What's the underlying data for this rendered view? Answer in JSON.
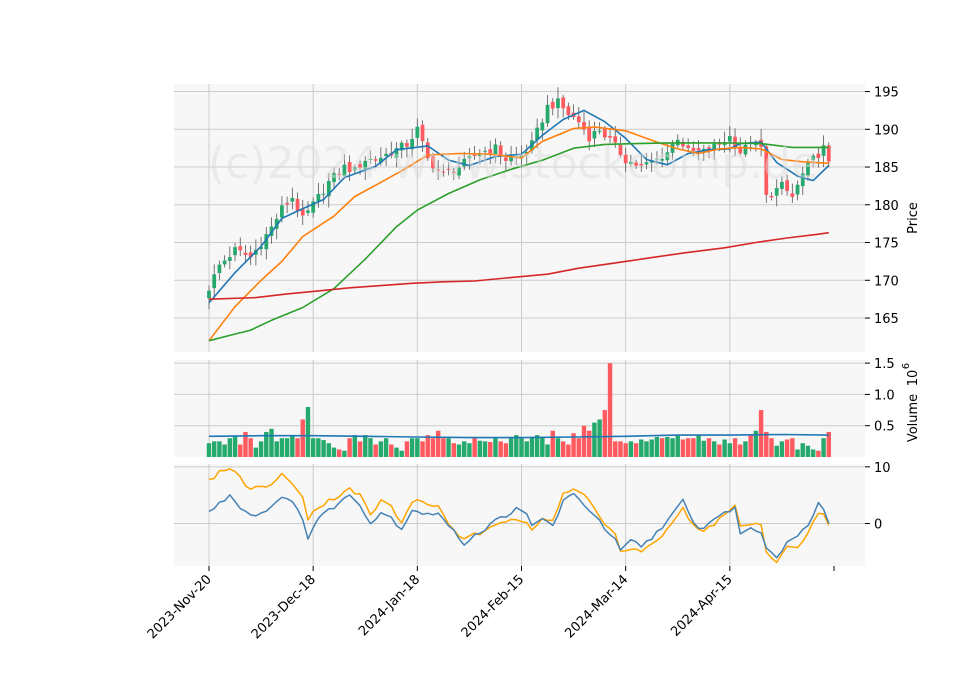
{
  "watermark": "(c)2024 www.stockcomp.de",
  "colors": {
    "up": "#26a96c",
    "down": "#ff5a5f",
    "ma1": "#1f77b4",
    "ma2": "#ff7f0e",
    "ma3": "#2ca02c",
    "ma4": "#d62728",
    "volume_ma": "#1f77b4",
    "osc_fast": "#4682b4",
    "osc_slow": "#ffa500",
    "panel_bg": "#f7f7f7",
    "grid": "#cccccc"
  },
  "chart_data": {
    "type": "candlestick",
    "x_ticks": [
      {
        "label": "2023-Nov-20",
        "day": 0
      },
      {
        "label": "2023-Dec-18",
        "day": 20
      },
      {
        "label": "2024-Jan-18",
        "day": 40
      },
      {
        "label": "2024-Feb-15",
        "day": 60
      },
      {
        "label": "2024-Mar-14",
        "day": 80
      },
      {
        "label": "2024-Apr-15",
        "day": 100
      }
    ],
    "n_days": 120,
    "price": {
      "ylabel": "Price",
      "ylim": [
        160.5,
        196
      ],
      "yticks": [
        165,
        170,
        175,
        180,
        185,
        190,
        195
      ],
      "close_key": [
        [
          0,
          169
        ],
        [
          2,
          172
        ],
        [
          5,
          174
        ],
        [
          8,
          173
        ],
        [
          10,
          175
        ],
        [
          12,
          177
        ],
        [
          14,
          179.5
        ],
        [
          16,
          181
        ],
        [
          18,
          178
        ],
        [
          20,
          180
        ],
        [
          23,
          183
        ],
        [
          26,
          185
        ],
        [
          28,
          184.5
        ],
        [
          30,
          186
        ],
        [
          32,
          186
        ],
        [
          35,
          187
        ],
        [
          38,
          188
        ],
        [
          40,
          190
        ],
        [
          42,
          186
        ],
        [
          45,
          184
        ],
        [
          48,
          185
        ],
        [
          50,
          186
        ],
        [
          52,
          187
        ],
        [
          55,
          187.5
        ],
        [
          57,
          186
        ],
        [
          60,
          186.5
        ],
        [
          62,
          188
        ],
        [
          65,
          193
        ],
        [
          67,
          193.5
        ],
        [
          69,
          192
        ],
        [
          71,
          191
        ],
        [
          73,
          189
        ],
        [
          75,
          190
        ],
        [
          77,
          188.5
        ],
        [
          80,
          186
        ],
        [
          83,
          185
        ],
        [
          86,
          186
        ],
        [
          88,
          187
        ],
        [
          90,
          189
        ],
        [
          92,
          187
        ],
        [
          95,
          187
        ],
        [
          98,
          188
        ],
        [
          100,
          189
        ],
        [
          102,
          187
        ],
        [
          104,
          188
        ],
        [
          106,
          187.5
        ],
        [
          107,
          181
        ],
        [
          110,
          182.5
        ],
        [
          112,
          181
        ],
        [
          114,
          184
        ],
        [
          116,
          186
        ],
        [
          118,
          187.5
        ],
        [
          120,
          183
        ]
      ],
      "ma_series": [
        {
          "key": "ma1",
          "points": [
            [
              0,
              167
            ],
            [
              5,
              171
            ],
            [
              10,
              174.5
            ],
            [
              14,
              178.2
            ],
            [
              18,
              179.5
            ],
            [
              22,
              180.7
            ],
            [
              26,
              183.6
            ],
            [
              32,
              185.1
            ],
            [
              36,
              187.3
            ],
            [
              42,
              187.8
            ],
            [
              46,
              185.9
            ],
            [
              50,
              185.2
            ],
            [
              55,
              186.4
            ],
            [
              60,
              186.7
            ],
            [
              64,
              189.2
            ],
            [
              68,
              191.3
            ],
            [
              72,
              192.5
            ],
            [
              76,
              191
            ],
            [
              80,
              188.8
            ],
            [
              84,
              186
            ],
            [
              88,
              185.3
            ],
            [
              92,
              186.8
            ],
            [
              96,
              187.3
            ],
            [
              100,
              187.4
            ],
            [
              102,
              188.1
            ],
            [
              106,
              188.3
            ],
            [
              109,
              185.6
            ],
            [
              113,
              183.8
            ],
            [
              116,
              183.2
            ],
            [
              119,
              185.2
            ]
          ]
        },
        {
          "key": "ma2",
          "points": [
            [
              0,
              162
            ],
            [
              5,
              166.5
            ],
            [
              10,
              170
            ],
            [
              14,
              172.5
            ],
            [
              18,
              175.8
            ],
            [
              24,
              178.5
            ],
            [
              28,
              181.1
            ],
            [
              32,
              182.6
            ],
            [
              37,
              184.5
            ],
            [
              42,
              186.6
            ],
            [
              48,
              186.8
            ],
            [
              54,
              186.7
            ],
            [
              60,
              186.2
            ],
            [
              64,
              188.4
            ],
            [
              70,
              190.1
            ],
            [
              74,
              190.3
            ],
            [
              80,
              189.8
            ],
            [
              86,
              188.3
            ],
            [
              90,
              187.4
            ],
            [
              94,
              186.8
            ],
            [
              98,
              187.4
            ],
            [
              102,
              187.6
            ],
            [
              106,
              187.4
            ],
            [
              110,
              186
            ],
            [
              114,
              185.7
            ],
            [
              119,
              185.5
            ]
          ]
        },
        {
          "key": "ma3",
          "points": [
            [
              0,
              162
            ],
            [
              4,
              162.7
            ],
            [
              8,
              163.4
            ],
            [
              12,
              164.7
            ],
            [
              18,
              166.4
            ],
            [
              24,
              168.9
            ],
            [
              30,
              172.8
            ],
            [
              36,
              177.1
            ],
            [
              40,
              179.3
            ],
            [
              46,
              181.5
            ],
            [
              52,
              183.3
            ],
            [
              58,
              184.7
            ],
            [
              64,
              185.9
            ],
            [
              70,
              187.5
            ],
            [
              76,
              188
            ],
            [
              82,
              188.1
            ],
            [
              88,
              188.2
            ],
            [
              94,
              188.2
            ],
            [
              100,
              188.2
            ],
            [
              106,
              188.1
            ],
            [
              112,
              187.6
            ],
            [
              119,
              187.6
            ]
          ]
        },
        {
          "key": "ma4",
          "points": [
            [
              0,
              167.5
            ],
            [
              9,
              167.7
            ],
            [
              15,
              168.2
            ],
            [
              21,
              168.6
            ],
            [
              27,
              169
            ],
            [
              33,
              169.3
            ],
            [
              39,
              169.6
            ],
            [
              45,
              169.8
            ],
            [
              51,
              169.9
            ],
            [
              57,
              170.3
            ],
            [
              65,
              170.8
            ],
            [
              71,
              171.6
            ],
            [
              79,
              172.4
            ],
            [
              85,
              173
            ],
            [
              91,
              173.6
            ],
            [
              99,
              174.3
            ],
            [
              105,
              175
            ],
            [
              111,
              175.6
            ],
            [
              117,
              176.1
            ],
            [
              119,
              176.3
            ]
          ]
        }
      ]
    },
    "volume": {
      "ylabel": "Volume",
      "exponent": "6",
      "ylim": [
        0,
        1.55
      ],
      "yticks": [
        0.5,
        1.0,
        1.5
      ],
      "ytick_labels": [
        "0.5",
        "1.0",
        "1.5"
      ],
      "values": [
        0.22,
        0.25,
        0.25,
        0.2,
        0.3,
        0.33,
        0.2,
        0.4,
        0.3,
        0.15,
        0.25,
        0.4,
        0.45,
        0.25,
        0.3,
        0.3,
        0.35,
        0.3,
        0.6,
        0.8,
        0.3,
        0.3,
        0.27,
        0.22,
        0.15,
        0.12,
        0.1,
        0.3,
        0.35,
        0.25,
        0.35,
        0.3,
        0.2,
        0.25,
        0.3,
        0.2,
        0.15,
        0.1,
        0.25,
        0.3,
        0.3,
        0.25,
        0.35,
        0.3,
        0.42,
        0.3,
        0.3,
        0.22,
        0.2,
        0.25,
        0.22,
        0.3,
        0.26,
        0.25,
        0.24,
        0.3,
        0.25,
        0.22,
        0.3,
        0.35,
        0.3,
        0.25,
        0.32,
        0.35,
        0.32,
        0.2,
        0.42,
        0.3,
        0.25,
        0.2,
        0.38,
        0.3,
        0.5,
        0.42,
        0.55,
        0.6,
        0.75,
        1.5,
        0.25,
        0.25,
        0.22,
        0.25,
        0.22,
        0.28,
        0.25,
        0.28,
        0.32,
        0.3,
        0.32,
        0.3,
        0.35,
        0.28,
        0.3,
        0.3,
        0.35,
        0.26,
        0.3,
        0.25,
        0.2,
        0.28,
        0.22,
        0.3,
        0.2,
        0.25,
        0.35,
        0.42,
        0.75,
        0.4,
        0.3,
        0.18,
        0.25,
        0.28,
        0.3,
        0.12,
        0.22,
        0.18,
        0.12,
        0.1,
        0.3,
        0.4
      ],
      "ma_points": [
        [
          0,
          0.33
        ],
        [
          10,
          0.34
        ],
        [
          20,
          0.34
        ],
        [
          30,
          0.33
        ],
        [
          40,
          0.32
        ],
        [
          50,
          0.31
        ],
        [
          60,
          0.31
        ],
        [
          70,
          0.32
        ],
        [
          80,
          0.33
        ],
        [
          90,
          0.35
        ],
        [
          100,
          0.35
        ],
        [
          110,
          0.36
        ],
        [
          119,
          0.35
        ]
      ]
    },
    "oscillator": {
      "ylim": [
        -7.5,
        10.5
      ],
      "yticks": [
        0,
        10
      ],
      "ytick_labels": [
        "0",
        "10"
      ],
      "fast_key": [
        [
          0,
          2
        ],
        [
          2,
          3.5
        ],
        [
          4,
          5
        ],
        [
          6,
          3
        ],
        [
          8,
          1.5
        ],
        [
          10,
          1.8
        ],
        [
          12,
          3
        ],
        [
          14,
          5
        ],
        [
          16,
          3.5
        ],
        [
          18,
          1
        ],
        [
          19,
          -2.5
        ],
        [
          21,
          1
        ],
        [
          24,
          3
        ],
        [
          27,
          5
        ],
        [
          29,
          3.5
        ],
        [
          31,
          0
        ],
        [
          33,
          2
        ],
        [
          35,
          1
        ],
        [
          37,
          -1
        ],
        [
          39,
          2.5
        ],
        [
          42,
          1.5
        ],
        [
          44,
          2
        ],
        [
          46,
          -0.5
        ],
        [
          49,
          -3.5
        ],
        [
          51,
          -2
        ],
        [
          53,
          -1
        ],
        [
          55,
          0.5
        ],
        [
          57,
          1.5
        ],
        [
          59,
          2.5
        ],
        [
          61,
          1.5
        ],
        [
          62,
          -0.5
        ],
        [
          64,
          1
        ],
        [
          66,
          -0.5
        ],
        [
          68,
          4
        ],
        [
          70,
          5
        ],
        [
          72,
          3.5
        ],
        [
          74,
          1.5
        ],
        [
          76,
          -1
        ],
        [
          78,
          -3
        ],
        [
          79,
          -5
        ],
        [
          81,
          -3
        ],
        [
          83,
          -4
        ],
        [
          85,
          -2.5
        ],
        [
          87,
          -0.5
        ],
        [
          89,
          1.5
        ],
        [
          91,
          4
        ],
        [
          93,
          0
        ],
        [
          95,
          -1
        ],
        [
          97,
          1
        ],
        [
          99,
          2
        ],
        [
          101,
          2.5
        ],
        [
          102,
          -1.5
        ],
        [
          104,
          -1
        ],
        [
          106,
          -1.5
        ],
        [
          107,
          -4
        ],
        [
          109,
          -6
        ],
        [
          111,
          -3
        ],
        [
          113,
          -2.5
        ],
        [
          115,
          0
        ],
        [
          117,
          3.5
        ],
        [
          118,
          2.5
        ],
        [
          120,
          -2
        ]
      ],
      "slow_key": [
        [
          0,
          7.5
        ],
        [
          2,
          9
        ],
        [
          4,
          10
        ],
        [
          6,
          8
        ],
        [
          8,
          6
        ],
        [
          10,
          6.5
        ],
        [
          12,
          7
        ],
        [
          14,
          8.5
        ],
        [
          16,
          7
        ],
        [
          18,
          5
        ],
        [
          19,
          1
        ],
        [
          21,
          3
        ],
        [
          24,
          4.5
        ],
        [
          27,
          6
        ],
        [
          29,
          5
        ],
        [
          31,
          1.5
        ],
        [
          33,
          4
        ],
        [
          35,
          3
        ],
        [
          37,
          0
        ],
        [
          39,
          4
        ],
        [
          42,
          3.5
        ],
        [
          44,
          3
        ],
        [
          46,
          0
        ],
        [
          49,
          -3
        ],
        [
          51,
          -2
        ],
        [
          53,
          -1.5
        ],
        [
          55,
          -0.5
        ],
        [
          57,
          0.5
        ],
        [
          59,
          1
        ],
        [
          61,
          0.5
        ],
        [
          62,
          -1
        ],
        [
          64,
          1
        ],
        [
          66,
          0.5
        ],
        [
          68,
          5
        ],
        [
          70,
          6
        ],
        [
          72,
          5
        ],
        [
          74,
          3
        ],
        [
          76,
          0
        ],
        [
          78,
          -2
        ],
        [
          79,
          -5
        ],
        [
          81,
          -4.5
        ],
        [
          83,
          -5
        ],
        [
          85,
          -4
        ],
        [
          87,
          -2
        ],
        [
          89,
          0
        ],
        [
          91,
          3
        ],
        [
          93,
          -0.5
        ],
        [
          95,
          -1.5
        ],
        [
          97,
          0
        ],
        [
          99,
          1.5
        ],
        [
          101,
          3
        ],
        [
          102,
          -0.5
        ],
        [
          104,
          0
        ],
        [
          106,
          -0.5
        ],
        [
          107,
          -5
        ],
        [
          109,
          -6.5
        ],
        [
          111,
          -4
        ],
        [
          113,
          -4.5
        ],
        [
          115,
          -2
        ],
        [
          117,
          2
        ],
        [
          118,
          1.5
        ],
        [
          120,
          -2.5
        ]
      ]
    }
  }
}
